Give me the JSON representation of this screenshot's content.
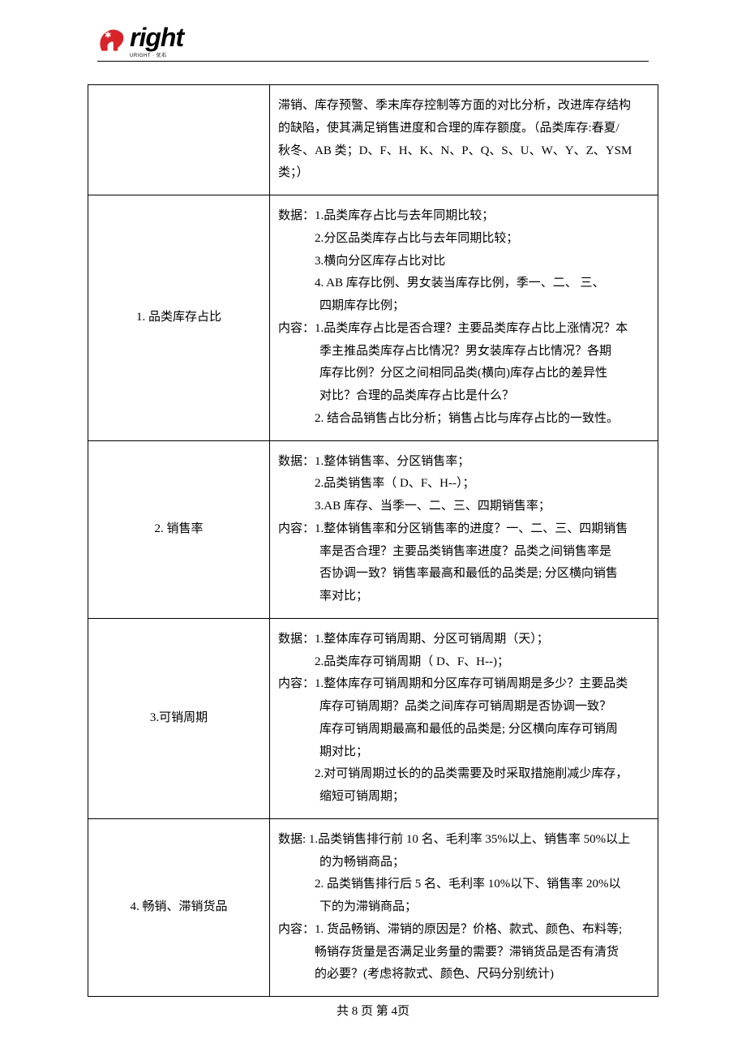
{
  "logo": {
    "brand_color": "#d8232a",
    "text": "right",
    "star_glyph": "✱",
    "u_glyph": "u",
    "subline": "URIGHT · 优右"
  },
  "rows": [
    {
      "label": "",
      "body_lines": [
        {
          "text": "滞销、库存预警、季末库存控制等方面的对比分析，改进库存结构",
          "indent": 0
        },
        {
          "text": "的缺陷，使其满足销售进度和合理的库存额度。（品类库存:春夏/",
          "indent": 0
        },
        {
          "text": "秋冬、AB 类；D、F、H、K、N、P、Q、S、U、W、Y、Z、YSM 类；）",
          "indent": 0
        }
      ]
    },
    {
      "label": "1. 品类库存占比",
      "body_lines": [
        {
          "text": "数据：1.品类库存占比与去年同期比较；",
          "indent": 0
        },
        {
          "text": "2.分区品类库存占比与去年同期比较；",
          "indent": 1
        },
        {
          "text": "3.横向分区库存占比对比",
          "indent": 1
        },
        {
          "text": " 4. AB 库存比例、男女装当库存比例，季一、二、  三、",
          "indent": 1
        },
        {
          "text": "四期库存比例；",
          "indent": 2
        },
        {
          "text": "内容：1.品类库存占比是否合理？主要品类库存占比上涨情况？本",
          "indent": 0
        },
        {
          "text": "季主推品类库存占比情况？男女装库存占比情况？各期",
          "indent": 2
        },
        {
          "text": "库存比例？分区之间相同品类(横向)库存占比的差异性",
          "indent": 2
        },
        {
          "text": "对比？合理的品类库存占比是什么？",
          "indent": 2
        },
        {
          "text": " 2. 结合品销售占比分析；销售占比与库存占比的一致性。",
          "indent": 1
        }
      ]
    },
    {
      "label": "2. 销售率",
      "body_lines": [
        {
          "text": "数据：1.整体销售率、分区销售率；",
          "indent": 0
        },
        {
          "text": "2.品类销售率（ D、F、H--）；",
          "indent": 1
        },
        {
          "text": "3.AB 库存、当季一、二、三、四期销售率；",
          "indent": 1
        },
        {
          "text": "内容：1.整体销售率和分区销售率的进度？一、二、三、四期销售",
          "indent": 0
        },
        {
          "text": "率是否合理？主要品类销售率进度？品类之间销售率是",
          "indent": 2
        },
        {
          "text": "否协调一致？销售率最高和最低的品类是; 分区横向销售",
          "indent": 2
        },
        {
          "text": "率对比；",
          "indent": 2
        }
      ]
    },
    {
      "label": "3.可销周期",
      "body_lines": [
        {
          "text": "数据：1.整体库存可销周期、分区可销周期（天）；",
          "indent": 0
        },
        {
          "text": "2.品类库存可销周期（ D、F、H--)；",
          "indent": 1
        },
        {
          "text": "内容：1.整体库存可销周期和分区库存可销周期是多少？主要品类",
          "indent": 0
        },
        {
          "text": "库存可销周期？品类之间库存可销周期是否协调一致？",
          "indent": 2
        },
        {
          "text": "库存可销周期最高和最低的品类是; 分区横向库存可销周",
          "indent": 2
        },
        {
          "text": "期对比；",
          "indent": 2
        },
        {
          "text": "2.对可销周期过长的的品类需要及时采取措施削减少库存，",
          "indent": 1
        },
        {
          "text": "缩短可销周期；",
          "indent": 2
        }
      ]
    },
    {
      "label": "4. 畅销、滞销货品",
      "body_lines": [
        {
          "text": "数据: 1.品类销售排行前 10 名、毛利率 35%以上、销售率 50%以上",
          "indent": 0
        },
        {
          "text": "的为畅销商品；",
          "indent": 2
        },
        {
          "text": " 2. 品类销售排行后 5 名、毛利率 10%以下、销售率 20%以",
          "indent": 1
        },
        {
          "text": "下的为滞销商品；",
          "indent": 2
        },
        {
          "text": "内容：1. 货品畅销、滞销的原因是？价格、款式、颜色、布料等;",
          "indent": 0
        },
        {
          "text": "畅销存货量是否满足业务量的需要？滞销货品是否有清货",
          "indent": 1
        },
        {
          "text": "的必要？(考虑将款式、颜色、尺码分别统计)",
          "indent": 1
        }
      ]
    }
  ],
  "footer": {
    "text": "共 8 页  第 4页"
  }
}
